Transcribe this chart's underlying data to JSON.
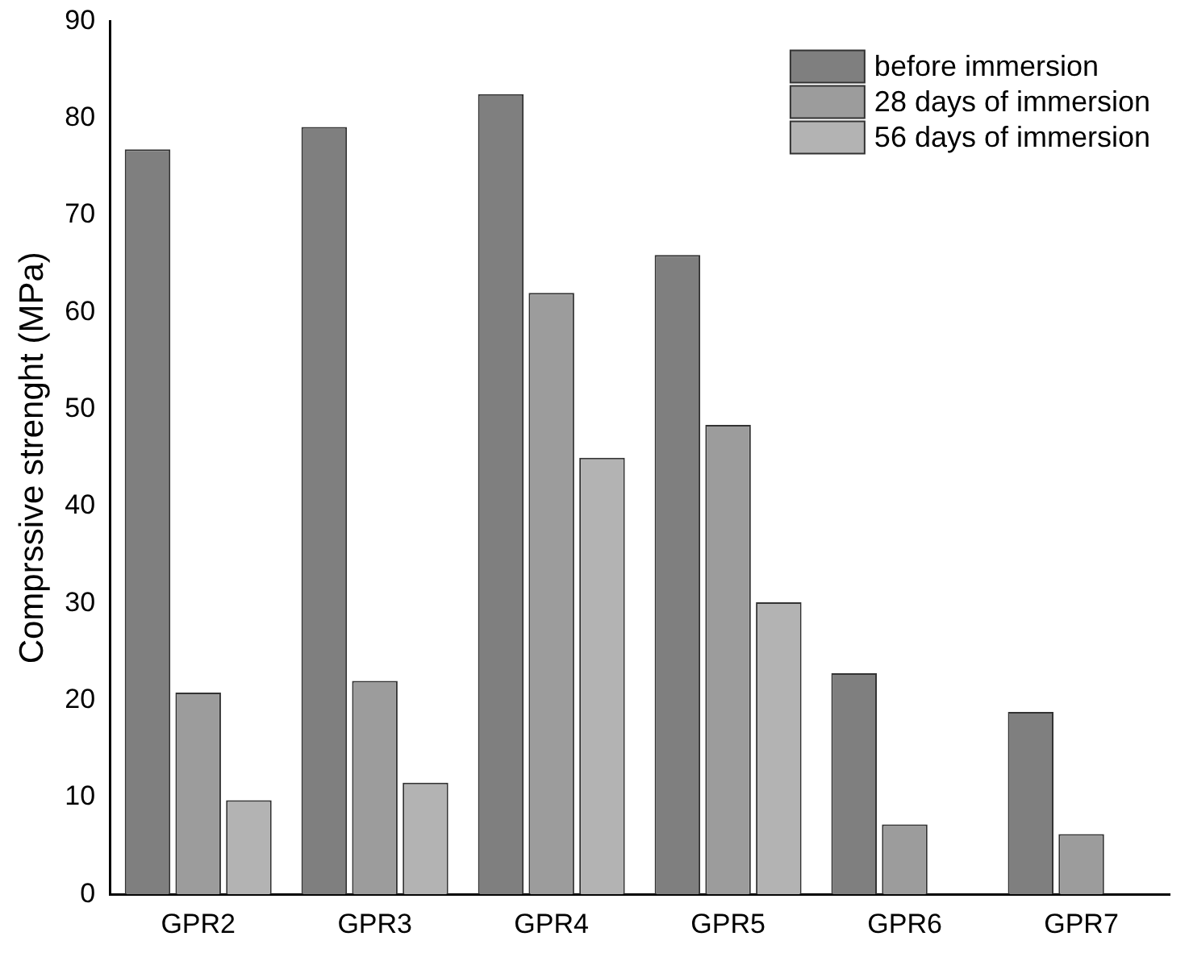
{
  "chart_data": {
    "type": "bar",
    "ylabel": "Comprssive strenght (MPa)",
    "categories": [
      "GPR2",
      "GPR3",
      "GPR4",
      "GPR5",
      "GPR6",
      "GPR7"
    ],
    "series": [
      {
        "name": "before immersion",
        "color": "#7f7f7f",
        "values": [
          76.8,
          79.1,
          82.5,
          65.9,
          22.8,
          18.8
        ]
      },
      {
        "name": "28 days of immersion",
        "color": "#9c9c9c",
        "values": [
          20.8,
          22,
          62,
          48.4,
          7.2,
          6.2
        ]
      },
      {
        "name": "56 days of immersion",
        "color": "#b3b3b3",
        "values": [
          9.7,
          11.5,
          45,
          30.1,
          null,
          null
        ]
      }
    ],
    "ylim": [
      0,
      90
    ],
    "yticks": [
      0,
      10,
      20,
      30,
      40,
      50,
      60,
      70,
      80,
      90
    ],
    "grid": false,
    "legend": "top right"
  }
}
